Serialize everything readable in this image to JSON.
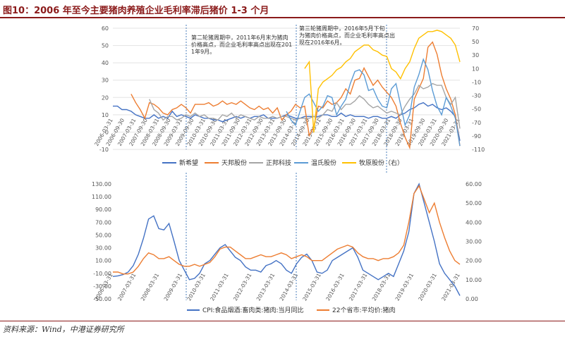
{
  "figure": {
    "title": "图10：2006 年至今主要猪肉养殖企业毛利率滞后猪价 1-3 个月",
    "source": "资料来源：Wind，中港证券研究所"
  },
  "chart_data": [
    {
      "type": "line",
      "title": "",
      "x_ticks": [
        "2006-03-31",
        "2006-09-30",
        "2007-03-31",
        "2007-09-30",
        "2008-03-31",
        "2008-09-30",
        "2009-03-31",
        "2009-09-30",
        "2010-03-31",
        "2010-09-30",
        "2011-03-31",
        "2011-09-30",
        "2012-03-31",
        "2012-09-30",
        "2013-03-31",
        "2013-09-30",
        "2014-03-31",
        "2014-09-30",
        "2015-03-31",
        "2015-09-30",
        "2016-03-31",
        "2016-09-30",
        "2017-03-31",
        "2017-09-30",
        "2018-03-31",
        "2018-09-30",
        "2019-03-31",
        "2019-09-30",
        "2020-03-31",
        "2020-09-30",
        "2021-03-31"
      ],
      "ylim_left": [
        -10,
        60
      ],
      "yticks_left": [
        60,
        50,
        40,
        30,
        20,
        10,
        0,
        -10
      ],
      "ylim_right": [
        -110,
        70
      ],
      "yticks_right": [
        70,
        50,
        30,
        10,
        -10,
        -30,
        -50,
        -70,
        -90,
        -110
      ],
      "legend": [
        "新希望",
        "天邦股份",
        "正邦科技",
        "温氏股份",
        "牧原股份（右）"
      ],
      "legend_position": "bottom",
      "annotations": [
        "第二轮猪周期中，2011年6月末为猪肉价格高点，而企业毛利率高点出现在2011年9月。",
        "第三轮猪周期中，2016年5月下旬为猪肉价格高点，而企业毛利率高点出现在2016年6月。"
      ],
      "series": [
        {
          "name": "新希望",
          "axis": "left",
          "color": "#4472c4",
          "values": [
            15,
            15,
            13,
            13,
            12,
            10,
            9,
            8,
            8,
            10,
            8,
            9,
            8,
            12,
            9,
            10,
            9,
            8,
            10,
            9,
            8,
            8,
            7,
            7,
            6,
            7,
            8,
            9,
            8,
            9,
            8,
            9,
            9,
            10,
            8,
            8,
            8,
            9,
            10,
            9,
            8,
            8,
            9,
            9,
            9,
            9,
            10,
            10,
            9,
            9,
            11,
            9,
            10,
            9,
            9,
            9,
            8,
            9,
            9,
            8,
            8,
            9,
            8,
            10,
            11,
            13,
            14,
            16,
            17,
            15,
            16,
            14,
            13,
            14,
            12,
            9,
            -5
          ]
        },
        {
          "name": "天邦股份",
          "axis": "left",
          "color": "#ed7d31",
          "values": [
            null,
            null,
            null,
            null,
            22,
            17,
            13,
            8,
            17,
            16,
            14,
            11,
            10,
            13,
            14,
            16,
            14,
            11,
            16,
            16,
            16,
            17,
            15,
            16,
            18,
            16,
            17,
            16,
            18,
            16,
            14,
            13,
            15,
            13,
            14,
            11,
            14,
            7,
            10,
            12,
            16,
            14,
            15,
            -2,
            3,
            15,
            14,
            18,
            16,
            17,
            20,
            25,
            22,
            30,
            31,
            37,
            32,
            27,
            30,
            26,
            23,
            20,
            15,
            5,
            -3,
            -9,
            19,
            25,
            31,
            49,
            52,
            45,
            33,
            25,
            19,
            10,
            -8
          ]
        },
        {
          "name": "正邦科技",
          "axis": "left",
          "color": "#a5a5a5",
          "values": [
            null,
            null,
            null,
            null,
            null,
            null,
            null,
            null,
            19,
            13,
            11,
            7,
            9,
            9,
            7,
            8,
            10,
            9,
            11,
            9,
            10,
            8,
            8,
            7,
            10,
            9,
            11,
            8,
            10,
            9,
            8,
            7,
            9,
            8,
            8,
            9,
            8,
            9,
            9,
            8,
            7,
            8,
            8,
            8,
            9,
            8,
            10,
            13,
            12,
            17,
            13,
            16,
            16,
            18,
            21,
            19,
            16,
            14,
            15,
            13,
            11,
            12,
            11,
            10,
            15,
            19,
            22,
            27,
            25,
            26,
            28,
            27,
            27,
            20,
            16,
            20,
            2
          ]
        },
        {
          "name": "温氏股份",
          "axis": "left",
          "color": "#5b9bd5",
          "values": [
            null,
            null,
            null,
            null,
            null,
            null,
            null,
            null,
            null,
            null,
            null,
            null,
            null,
            null,
            null,
            null,
            null,
            null,
            null,
            null,
            null,
            null,
            null,
            null,
            null,
            null,
            null,
            null,
            null,
            null,
            null,
            null,
            null,
            null,
            null,
            null,
            null,
            null,
            12,
            7,
            4,
            12,
            20,
            22,
            17,
            12,
            15,
            21,
            20,
            10,
            15,
            19,
            28,
            35,
            36,
            33,
            24,
            25,
            19,
            15,
            14,
            25,
            28,
            16,
            4,
            10,
            26,
            33,
            42,
            36,
            24,
            15,
            10,
            20,
            15,
            8,
            -8
          ]
        },
        {
          "name": "牧原股份（右）",
          "axis": "right",
          "color": "#ffc000",
          "values": [
            null,
            null,
            null,
            null,
            null,
            null,
            null,
            null,
            null,
            null,
            null,
            null,
            null,
            null,
            null,
            null,
            null,
            null,
            null,
            null,
            null,
            null,
            null,
            null,
            null,
            null,
            null,
            null,
            null,
            null,
            null,
            null,
            null,
            null,
            null,
            null,
            null,
            null,
            null,
            null,
            null,
            null,
            10,
            20,
            -85,
            -20,
            -10,
            -5,
            0,
            8,
            12,
            20,
            25,
            35,
            40,
            45,
            45,
            38,
            35,
            30,
            28,
            10,
            5,
            -5,
            10,
            20,
            40,
            55,
            60,
            65,
            65,
            67,
            65,
            60,
            55,
            45,
            20
          ]
        }
      ]
    },
    {
      "type": "line",
      "title": "",
      "x_ticks": [
        "2006-03-31",
        "2007-03-31",
        "2008-03-31",
        "2009-03-31",
        "2010-03-31",
        "2011-03-31",
        "2012-03-31",
        "2013-03-31",
        "2014-03-31",
        "2015-03-31",
        "2016-03-31",
        "2017-03-31",
        "2018-03-31",
        "2019-03-31",
        "2020-03-31",
        "2021-03-31"
      ],
      "ylim_left": [
        -50,
        130
      ],
      "yticks_left": [
        "130.00",
        "110.00",
        "90.00",
        "70.00",
        "50.00",
        "30.00",
        "10.00",
        "-10.00",
        "-30.00",
        "-50.00"
      ],
      "ylim_right": [
        0,
        60
      ],
      "yticks_right": [
        "60.00",
        "50.00",
        "40.00",
        "30.00",
        "20.00",
        "10.00",
        "0.00"
      ],
      "legend": [
        "CPI:食品烟酒:畜肉类:猪肉:当月同比",
        "22个省市:平均价:猪肉"
      ],
      "legend_position": "bottom",
      "series": [
        {
          "name": "CPI:食品烟酒:畜肉类:猪肉:当月同比",
          "axis": "left",
          "color": "#4472c4",
          "values": [
            -15,
            -14,
            -12,
            -8,
            2,
            20,
            45,
            75,
            80,
            60,
            58,
            68,
            40,
            10,
            -5,
            -20,
            -18,
            -10,
            5,
            10,
            20,
            30,
            35,
            25,
            15,
            10,
            0,
            -5,
            -5,
            -8,
            2,
            5,
            10,
            5,
            -5,
            -10,
            5,
            15,
            20,
            10,
            -8,
            -10,
            -5,
            10,
            15,
            20,
            25,
            30,
            15,
            -5,
            -10,
            -15,
            -20,
            -15,
            -10,
            -15,
            5,
            25,
            55,
            115,
            130,
            100,
            70,
            40,
            5,
            -10,
            -20,
            -30,
            -45
          ]
        },
        {
          "name": "22个省市:平均价:猪肉",
          "axis": "right",
          "color": "#ed7d31",
          "values": [
            14,
            14,
            13,
            13,
            14,
            17,
            21,
            24,
            23,
            21,
            21,
            22,
            20,
            18,
            17,
            17,
            18,
            17,
            18,
            19,
            22,
            26,
            27,
            27,
            25,
            23,
            21,
            21,
            22,
            23,
            22,
            22,
            23,
            24,
            23,
            21,
            22,
            23,
            22,
            20,
            20,
            20,
            22,
            24,
            26,
            27,
            28,
            27,
            24,
            22,
            21,
            21,
            20,
            21,
            21,
            22,
            24,
            28,
            40,
            55,
            59,
            52,
            45,
            50,
            40,
            32,
            25,
            20,
            18
          ]
        }
      ]
    }
  ]
}
